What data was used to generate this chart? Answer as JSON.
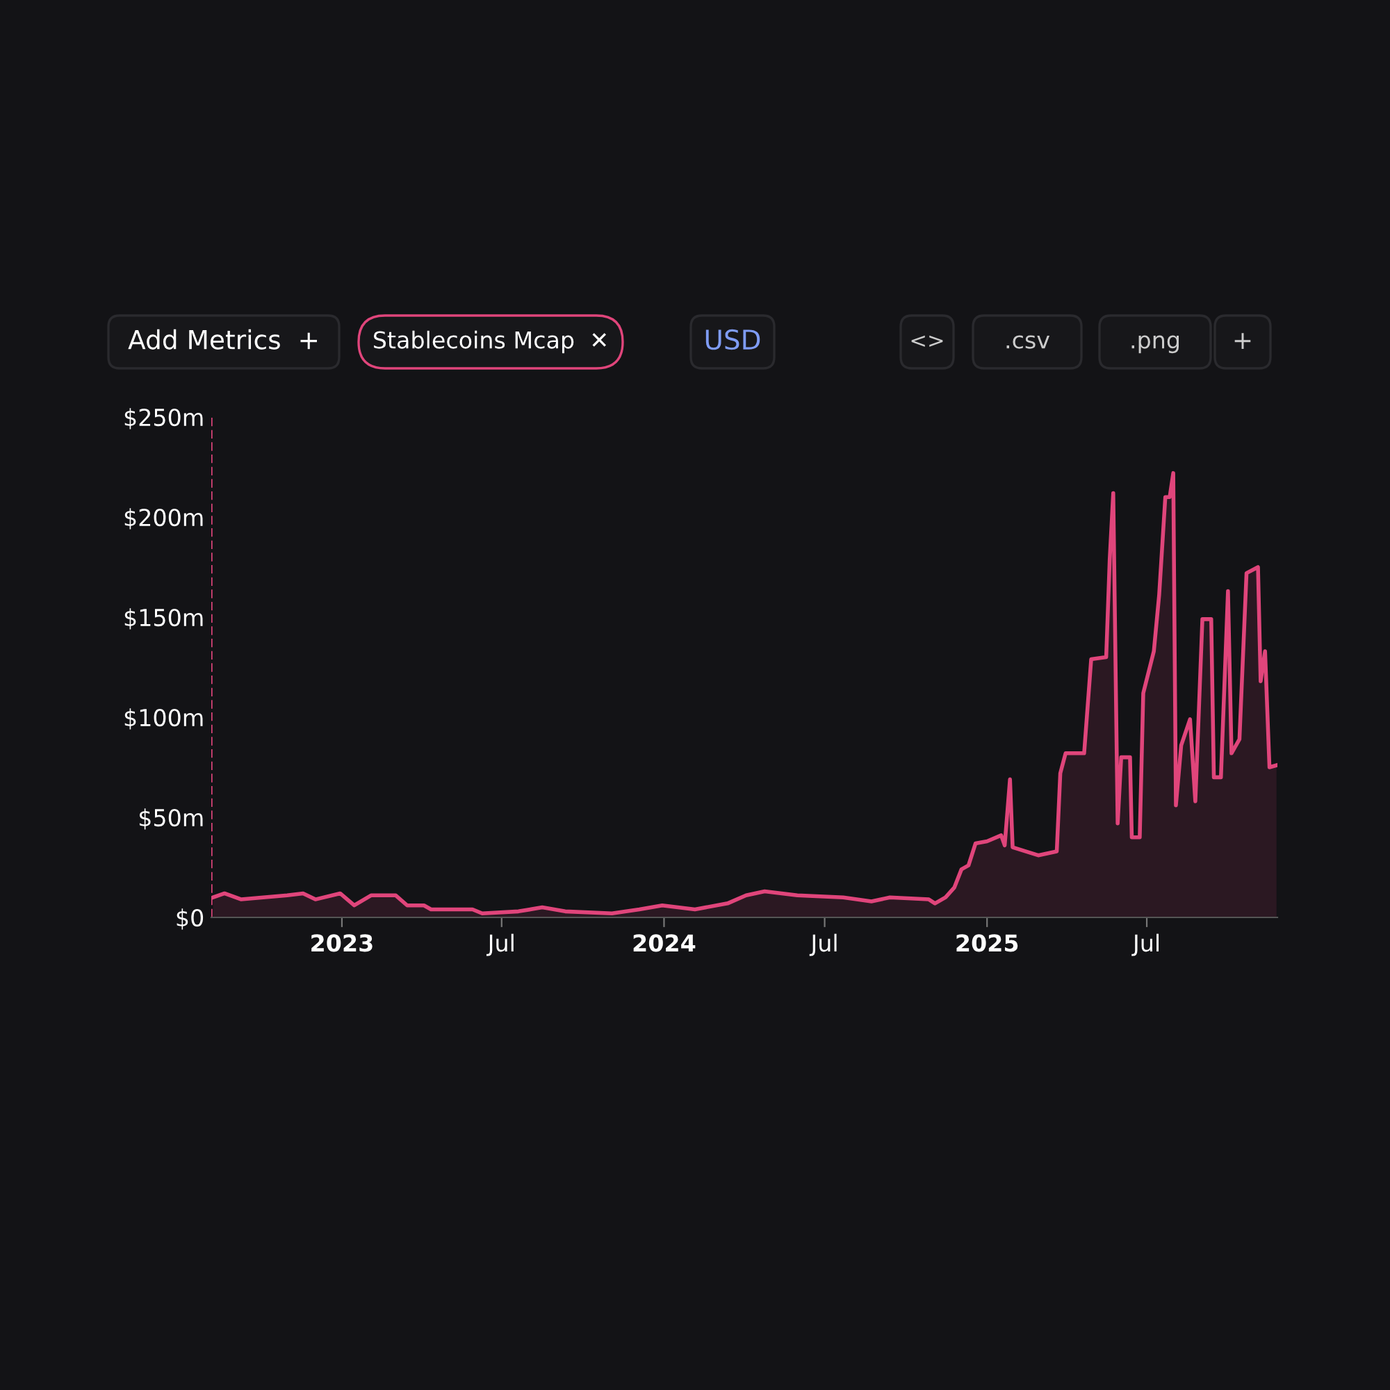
{
  "chart_data": {
    "type": "area",
    "x": [
      "2022-08-08",
      "2022-08-21",
      "2022-09-09",
      "2022-10-31",
      "2022-11-18",
      "2022-12-02",
      "2022-12-30",
      "2023-01-15",
      "2023-02-03",
      "2023-03-03",
      "2023-03-16",
      "2023-04-04",
      "2023-04-12",
      "2023-05-29",
      "2023-06-09",
      "2023-07-20",
      "2023-08-16",
      "2023-09-11",
      "2023-11-03",
      "2023-12-04",
      "2023-12-30",
      "2024-02-05",
      "2024-03-13",
      "2024-04-03",
      "2024-04-24",
      "2024-05-31",
      "2024-07-22",
      "2024-08-23",
      "2024-09-13",
      "2024-10-27",
      "2024-11-03",
      "2024-11-15",
      "2024-11-25",
      "2024-12-03",
      "2024-12-11",
      "2024-12-19",
      "2025-01-01",
      "2025-01-17",
      "2025-01-21",
      "2025-01-27",
      "2025-01-30",
      "2025-02-28",
      "2025-03-21",
      "2025-03-25",
      "2025-03-31",
      "2025-04-21",
      "2025-04-29",
      "2025-05-16",
      "2025-05-20",
      "2025-05-24",
      "2025-05-29",
      "2025-06-02",
      "2025-06-12",
      "2025-06-14",
      "2025-06-23",
      "2025-06-27",
      "2025-07-09",
      "2025-07-15",
      "2025-07-22",
      "2025-07-27",
      "2025-07-31",
      "2025-08-03",
      "2025-08-09",
      "2025-08-19",
      "2025-08-25",
      "2025-09-02",
      "2025-09-12",
      "2025-09-15",
      "2025-09-23",
      "2025-10-01",
      "2025-10-05",
      "2025-10-14",
      "2025-10-22",
      "2025-11-04",
      "2025-11-07",
      "2025-11-12",
      "2025-11-17",
      "2025-11-25"
    ],
    "series": [
      {
        "color": "#e0457b",
        "values": [
          10,
          12,
          9,
          11,
          12,
          9,
          12,
          6,
          11,
          11,
          6,
          6,
          4,
          4,
          2,
          3,
          5,
          3,
          2,
          4,
          6,
          4,
          7,
          11,
          13,
          11,
          10,
          8,
          10,
          9,
          7,
          10,
          15,
          24,
          26,
          37,
          38,
          41,
          36,
          69,
          35,
          31,
          33,
          72,
          82,
          82,
          129,
          130,
          179,
          212,
          47,
          80,
          80,
          40,
          40,
          112,
          133,
          161,
          210,
          210,
          222,
          56,
          86,
          99,
          58,
          149,
          149,
          70,
          70,
          163,
          82,
          89,
          172,
          175,
          118,
          133,
          75,
          76
        ]
      }
    ],
    "xlim": [
      "2022-08-06",
      "2025-11-26"
    ],
    "xticks": [
      {
        "value": "2023-01-01",
        "label": "2023"
      },
      {
        "value": "2023-07-01",
        "label": "Jul"
      },
      {
        "value": "2024-01-01",
        "label": "2024"
      },
      {
        "value": "2024-07-01",
        "label": "Jul"
      },
      {
        "value": "2025-01-01",
        "label": "2025"
      },
      {
        "value": "2025-07-01",
        "label": "Jul"
      }
    ],
    "ylim": [
      0,
      250
    ],
    "yticks": [
      {
        "value": 0,
        "label": "$0"
      },
      {
        "value": 50,
        "label": "$50m"
      },
      {
        "value": 100,
        "label": "$100m"
      },
      {
        "value": 150,
        "label": "$150m"
      },
      {
        "value": 200,
        "label": "$200m"
      },
      {
        "value": 250,
        "label": "$250m"
      }
    ],
    "ref_lines": [
      {
        "axis": "x",
        "value": "2022-08-06",
        "color": "#e0457b",
        "line_style": "dashed"
      }
    ],
    "grid": false,
    "annotations": [
      "Add Metrics  +",
      "Stablecoins Mcap  ✕",
      "USD",
      "<>",
      ".csv",
      ".png",
      "+"
    ]
  }
}
